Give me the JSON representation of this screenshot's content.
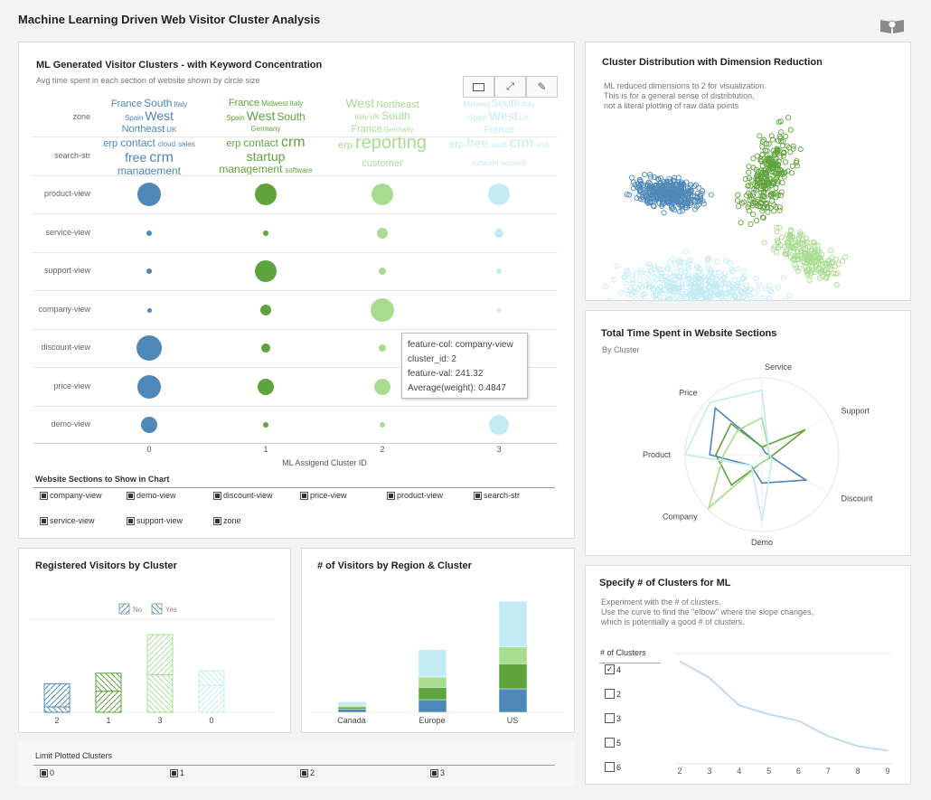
{
  "header": {
    "title": "Machine Learning Driven Web Visitor Cluster Analysis",
    "book_icon": "book-icon"
  },
  "colors": {
    "cluster0": "#4e88b8",
    "cluster1": "#5fa33c",
    "cluster2": "#a8dd91",
    "cluster3": "#c3ebf4"
  },
  "clusters_panel": {
    "title": "ML Generated Visitor Clusters - with Keyword Concentration",
    "subtitle": "Avg time spent in each section of website shown by circle size",
    "toolbar": [
      "table-icon",
      "expand-icon",
      "edit-icon"
    ],
    "rows": [
      "zone",
      "search-str",
      "product-view",
      "service-view",
      "support-view",
      "company-view",
      "discount-view",
      "price-view",
      "demo-view"
    ],
    "columns": [
      "0",
      "1",
      "2",
      "3"
    ],
    "xlabel": "ML Assigend Cluster ID",
    "words": {
      "zone": [
        [
          "France",
          "South",
          "Italy",
          "Spain",
          "West",
          "Northeast",
          "UK"
        ],
        [
          "France",
          "Midwest",
          "Italy",
          "Spain",
          "West",
          "South",
          "Germany"
        ],
        [
          "West",
          "Northeast",
          "Italy",
          "UK",
          "South",
          "France",
          "Germany"
        ],
        [
          "Midwest",
          "South",
          "Italy",
          "Spain",
          "West",
          "UK",
          "France"
        ]
      ],
      "search": [
        [
          "erp",
          "contact",
          "cloud",
          "sales",
          "free",
          "crm",
          "management"
        ],
        [
          "erp",
          "contact",
          "crm",
          "startup",
          "management",
          "software"
        ],
        [
          "erp",
          "reporting",
          "customer"
        ],
        [
          "erp",
          "free",
          "audit",
          "crm",
          "and",
          "software",
          "account"
        ]
      ]
    },
    "bubbles": {
      "product-view": [
        13,
        12,
        12,
        12
      ],
      "service-view": [
        3,
        3,
        6,
        5
      ],
      "support-view": [
        3,
        12,
        4,
        3
      ],
      "company-view": [
        2.5,
        6,
        13,
        2
      ],
      "discount-view": [
        14,
        5,
        4,
        4
      ],
      "price-view": [
        13,
        9,
        9,
        9
      ],
      "demo-view": [
        9,
        3,
        3,
        11
      ]
    },
    "tooltip": {
      "line1": "feature-col: company-view",
      "line2": "cluster_id: 2",
      "line3": "feature-val: 241.32",
      "line4": "Average(weight): 0.4847"
    },
    "filter_title": "Website Sections to Show in Chart",
    "filters": [
      "company-view",
      "demo-view",
      "discount-view",
      "price-view",
      "product-view",
      "search-str",
      "service-view",
      "support-view",
      "zone"
    ]
  },
  "scatter_panel": {
    "title": "Cluster Distribution with Dimension Reduction",
    "lines": [
      "ML reduced dimensions to 2 for visualization.",
      "This is for a general sense of distribtution,",
      "not a literal plotting of raw data points"
    ]
  },
  "radar_panel": {
    "title": "Total Time Spent in Website Sections",
    "subtitle": "By Cluster",
    "chart_data": {
      "type": "radar",
      "axes": [
        "Service",
        "Support",
        "Discount",
        "Demo",
        "Company",
        "Product",
        "Price"
      ],
      "series": [
        {
          "name": "0",
          "values": [
            0.1,
            0.05,
            0.66,
            0.37,
            0.2,
            0.68,
            0.86
          ]
        },
        {
          "name": "1",
          "values": [
            0.1,
            0.65,
            0.1,
            0.1,
            0.56,
            0.6,
            0.57
          ]
        },
        {
          "name": "2",
          "values": [
            0.48,
            0.1,
            0.1,
            0.1,
            0.98,
            0.5,
            0.45
          ]
        },
        {
          "name": "3",
          "values": [
            0.84,
            0.1,
            0.15,
            0.86,
            0.2,
            1.0,
            0.96
          ]
        }
      ]
    }
  },
  "elbow_panel": {
    "title": "Specify # of Clusters for ML",
    "lines": [
      "Experiment with the # of clusters.",
      "Use the curve to find the \"elbow\" where the slope changes,",
      "which is potentially a good # of clusters."
    ],
    "list_title": "# of Clusters",
    "options": [
      {
        "label": "4",
        "checked": true
      },
      {
        "label": "2",
        "checked": false
      },
      {
        "label": "3",
        "checked": false
      },
      {
        "label": "5",
        "checked": false
      },
      {
        "label": "6",
        "checked": false
      }
    ],
    "chart_data": {
      "type": "line",
      "x": [
        2,
        3,
        4,
        5,
        6,
        7,
        8,
        9
      ],
      "y": [
        93,
        78,
        53,
        45,
        39,
        25,
        16,
        12
      ],
      "ylim": [
        0,
        100
      ]
    }
  },
  "registered_panel": {
    "title": "Registered Visitors by Cluster",
    "legend": [
      "No",
      "Yes"
    ],
    "chart_data": {
      "type": "bar",
      "stacked": true,
      "categories": [
        "2",
        "1",
        "3",
        "0"
      ],
      "stacks": [
        [
          [
            "Yes",
            18
          ],
          [
            "No",
            77
          ]
        ],
        [
          [
            "No",
            70
          ],
          [
            "Yes",
            60
          ]
        ],
        [
          [
            "Yes",
            125
          ],
          [
            "No",
            133
          ]
        ],
        [
          [
            "No",
            90
          ],
          [
            "Yes",
            48
          ]
        ]
      ],
      "clusterColor": [
        "cluster2",
        "cluster1",
        "cluster3",
        "cluster0"
      ]
    }
  },
  "region_panel": {
    "title": "# of Visitors by Region & Cluster",
    "chart_data": {
      "type": "bar",
      "stacked": true,
      "categories": [
        "Canada",
        "Europe",
        "US"
      ],
      "series": [
        {
          "name": "0",
          "values": [
            10,
            42,
            78
          ]
        },
        {
          "name": "1",
          "values": [
            8,
            41,
            83
          ]
        },
        {
          "name": "2",
          "values": [
            5,
            34,
            56
          ]
        },
        {
          "name": "3",
          "values": [
            12,
            91,
            151
          ]
        }
      ]
    }
  },
  "limit_panel": {
    "title": "Limit Plotted Clusters",
    "options": [
      "0",
      "1",
      "2",
      "3"
    ]
  }
}
